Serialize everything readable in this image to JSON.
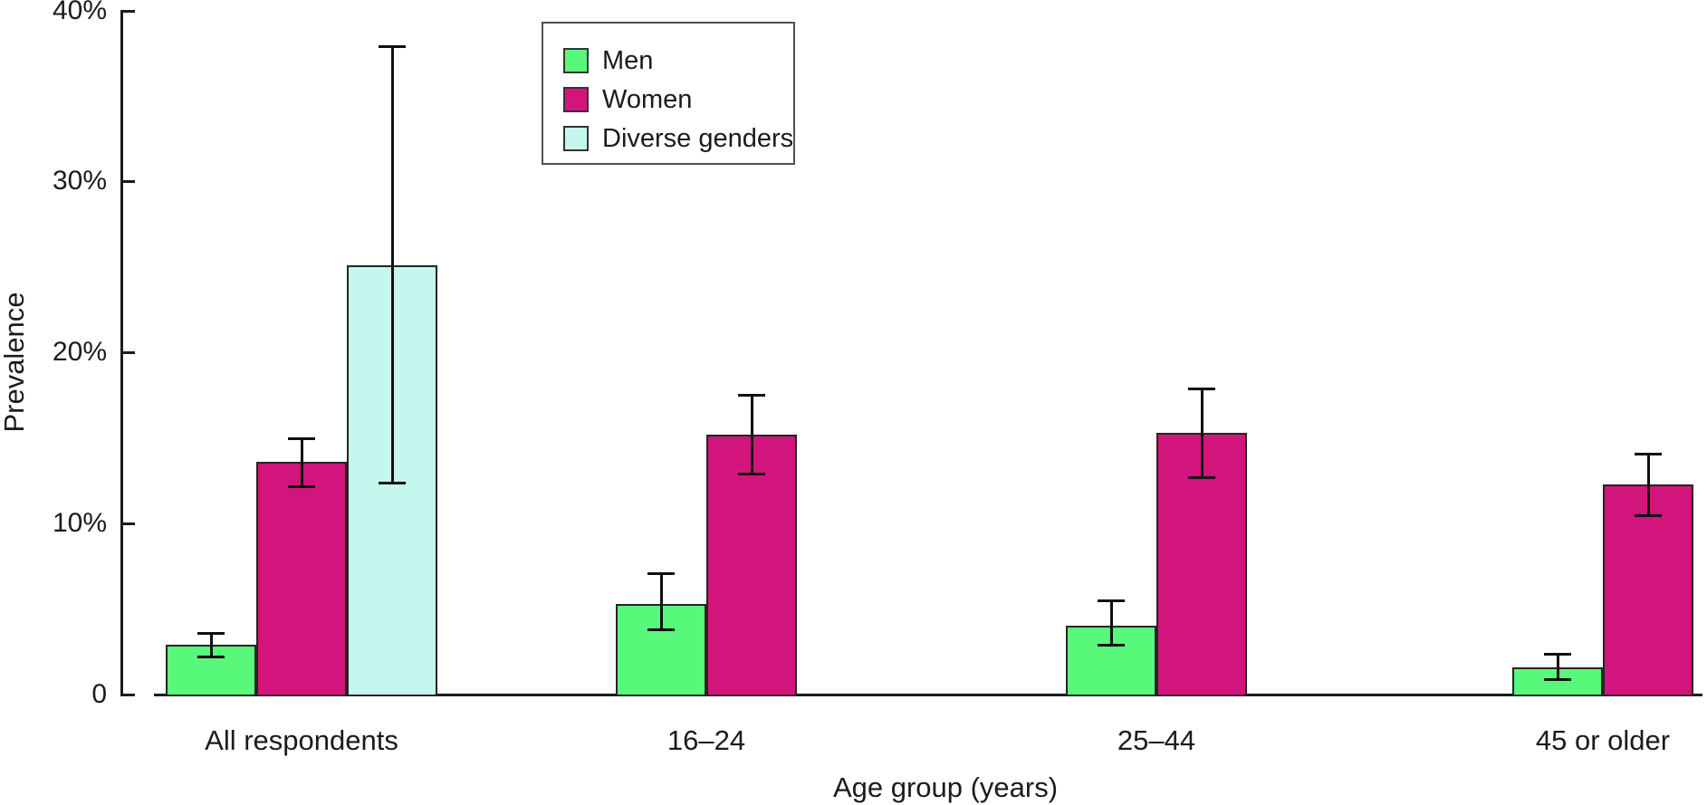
{
  "chart_data": {
    "type": "bar",
    "title": "",
    "xlabel": "Age group (years)",
    "ylabel": "Prevalence",
    "ylim": [
      0,
      40
    ],
    "grid": false,
    "error_bars": true,
    "legend_position": "inside-top-left",
    "yticks": [
      {
        "value": 40,
        "label": "40%"
      },
      {
        "value": 30,
        "label": "30%"
      },
      {
        "value": 20,
        "label": "20%"
      },
      {
        "value": 10,
        "label": "10%"
      },
      {
        "value": 0,
        "label": "0"
      }
    ],
    "categories": [
      "All respondents",
      "16–24",
      "25–44",
      "45 or older"
    ],
    "series": [
      {
        "name": "Men",
        "color": "#58F87B",
        "values": [
          2.9,
          5.3,
          4.0,
          1.6
        ],
        "ci_low": [
          2.2,
          3.8,
          2.9,
          0.9
        ],
        "ci_high": [
          3.6,
          7.1,
          5.5,
          2.4
        ]
      },
      {
        "name": "Women",
        "color": "#D1157C",
        "values": [
          13.6,
          15.2,
          15.3,
          12.3
        ],
        "ci_low": [
          12.2,
          12.9,
          12.7,
          10.5
        ],
        "ci_high": [
          15.0,
          17.5,
          17.9,
          14.1
        ]
      },
      {
        "name": "Diverse genders",
        "color": "#C5F7EF",
        "values": [
          25.1,
          null,
          null,
          null
        ],
        "ci_low": [
          12.4,
          null,
          null,
          null
        ],
        "ci_high": [
          37.9,
          null,
          null,
          null
        ]
      }
    ]
  }
}
